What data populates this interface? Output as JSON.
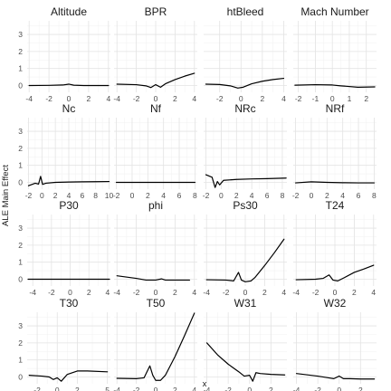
{
  "chart_data": {
    "type": "line",
    "ylabel": "ALE Main Effect",
    "xlabel": "x",
    "ylim": [
      -0.4,
      3.8
    ],
    "yticks": [
      0,
      1,
      2,
      3
    ],
    "grid": true,
    "facets": [
      {
        "name": "Altitude",
        "xlim": [
          -4.2,
          4.2
        ],
        "xticks": [
          -4,
          -2,
          0,
          2,
          4
        ],
        "points": [
          [
            -4,
            0
          ],
          [
            -2,
            0.01
          ],
          [
            -0.6,
            0.03
          ],
          [
            0,
            0.08
          ],
          [
            0.5,
            0.02
          ],
          [
            1.5,
            0
          ],
          [
            4,
            0
          ]
        ]
      },
      {
        "name": "BPR",
        "xlim": [
          -4.3,
          4.3
        ],
        "xticks": [
          -4,
          -2,
          0,
          2,
          4
        ],
        "points": [
          [
            -4,
            0.08
          ],
          [
            -2,
            0.05
          ],
          [
            -1,
            -0.02
          ],
          [
            -0.5,
            -0.12
          ],
          [
            0,
            0.05
          ],
          [
            0.5,
            -0.1
          ],
          [
            1,
            0.1
          ],
          [
            2,
            0.35
          ],
          [
            3,
            0.55
          ],
          [
            4,
            0.72
          ]
        ]
      },
      {
        "name": "htBleed",
        "xlim": [
          -3.5,
          4.3
        ],
        "xticks": [
          -2,
          0,
          2,
          4
        ],
        "points": [
          [
            -3.3,
            0.08
          ],
          [
            -2,
            0.06
          ],
          [
            -1,
            -0.02
          ],
          [
            -0.3,
            -0.15
          ],
          [
            0.2,
            -0.1
          ],
          [
            1,
            0.1
          ],
          [
            2,
            0.25
          ],
          [
            3,
            0.35
          ],
          [
            4,
            0.42
          ]
        ]
      },
      {
        "name": "Mach Number",
        "xlim": [
          -2.3,
          2.6
        ],
        "xticks": [
          -2,
          -1,
          0,
          1,
          2
        ],
        "points": [
          [
            -2.2,
            0.02
          ],
          [
            -1,
            0.05
          ],
          [
            0,
            0.03
          ],
          [
            0.5,
            -0.02
          ],
          [
            1.5,
            -0.1
          ],
          [
            2.5,
            -0.08
          ]
        ]
      },
      {
        "name": "Nc",
        "xlim": [
          -2.2,
          10.2
        ],
        "xticks": [
          -2,
          0,
          2,
          4,
          6,
          8,
          10
        ],
        "points": [
          [
            -2,
            -0.2
          ],
          [
            -1,
            -0.05
          ],
          [
            -0.5,
            -0.1
          ],
          [
            -0.2,
            0.35
          ],
          [
            0.1,
            -0.12
          ],
          [
            0.6,
            -0.05
          ],
          [
            2,
            0
          ],
          [
            4,
            0.02
          ],
          [
            6,
            0.03
          ],
          [
            8,
            0.04
          ],
          [
            10,
            0.05
          ]
        ]
      },
      {
        "name": "Nf",
        "xlim": [
          -2.3,
          8.3
        ],
        "xticks": [
          -2,
          0,
          2,
          4,
          6,
          8
        ],
        "points": [
          [
            -2,
            0
          ],
          [
            8,
            0
          ]
        ]
      },
      {
        "name": "NRc",
        "xlim": [
          -2.3,
          8.6
        ],
        "xticks": [
          -2,
          0,
          2,
          4,
          6,
          8
        ],
        "points": [
          [
            -2,
            0.45
          ],
          [
            -1.2,
            0.3
          ],
          [
            -0.8,
            -0.3
          ],
          [
            -0.5,
            0.05
          ],
          [
            -0.2,
            -0.15
          ],
          [
            0.3,
            0.12
          ],
          [
            2,
            0.17
          ],
          [
            4,
            0.2
          ],
          [
            6,
            0.22
          ],
          [
            8.5,
            0.25
          ]
        ]
      },
      {
        "name": "NRf",
        "xlim": [
          -2.3,
          8.3
        ],
        "xticks": [
          -2,
          0,
          2,
          4,
          6,
          8
        ],
        "points": [
          [
            -2,
            -0.03
          ],
          [
            0,
            0.03
          ],
          [
            2,
            0
          ],
          [
            4,
            -0.02
          ],
          [
            6,
            -0.03
          ],
          [
            8,
            -0.03
          ]
        ]
      },
      {
        "name": "P30",
        "xlim": [
          -4.6,
          4.3
        ],
        "xticks": [
          -4,
          -2,
          0,
          2,
          4
        ],
        "points": [
          [
            -4.5,
            0
          ],
          [
            4.2,
            0
          ]
        ]
      },
      {
        "name": "phi",
        "xlim": [
          -4.3,
          4.3
        ],
        "xticks": [
          -4,
          -2,
          0,
          2,
          4
        ],
        "points": [
          [
            -4,
            0.2
          ],
          [
            -2,
            0.05
          ],
          [
            -1,
            -0.05
          ],
          [
            0,
            -0.05
          ],
          [
            0.6,
            0.02
          ],
          [
            1,
            -0.05
          ],
          [
            2,
            -0.05
          ],
          [
            3.5,
            -0.05
          ]
        ]
      },
      {
        "name": "Ps30",
        "xlim": [
          -4.3,
          4.3
        ],
        "xticks": [
          -4,
          -2,
          0,
          2,
          4
        ],
        "points": [
          [
            -4,
            -0.03
          ],
          [
            -2,
            -0.05
          ],
          [
            -1.2,
            -0.1
          ],
          [
            -0.7,
            0.4
          ],
          [
            -0.4,
            -0.05
          ],
          [
            0,
            -0.15
          ],
          [
            0.6,
            -0.1
          ],
          [
            1,
            0.1
          ],
          [
            2,
            0.8
          ],
          [
            3,
            1.55
          ],
          [
            4,
            2.35
          ]
        ]
      },
      {
        "name": "T24",
        "xlim": [
          -4.3,
          4.3
        ],
        "xticks": [
          -4,
          -2,
          0,
          2,
          4
        ],
        "points": [
          [
            -4,
            -0.03
          ],
          [
            -2,
            0
          ],
          [
            -1.2,
            0.05
          ],
          [
            -0.6,
            0.25
          ],
          [
            -0.2,
            -0.05
          ],
          [
            0.3,
            -0.1
          ],
          [
            1,
            0.1
          ],
          [
            2,
            0.4
          ],
          [
            3,
            0.6
          ],
          [
            4,
            0.82
          ]
        ]
      },
      {
        "name": "T30",
        "xlim": [
          -3.0,
          5.3
        ],
        "xticks": [
          -2,
          0,
          2,
          5
        ],
        "points": [
          [
            -2.8,
            0.1
          ],
          [
            -1.5,
            0.05
          ],
          [
            -0.8,
            0
          ],
          [
            -0.4,
            -0.15
          ],
          [
            0,
            -0.05
          ],
          [
            0.4,
            -0.25
          ],
          [
            1,
            0.15
          ],
          [
            2,
            0.35
          ],
          [
            3,
            0.35
          ],
          [
            5,
            0.3
          ]
        ]
      },
      {
        "name": "T50",
        "xlim": [
          -4.3,
          4.3
        ],
        "xticks": [
          -4,
          -2,
          0,
          2,
          4
        ],
        "points": [
          [
            -4,
            -0.08
          ],
          [
            -2,
            -0.1
          ],
          [
            -1.2,
            -0.05
          ],
          [
            -0.6,
            0.65
          ],
          [
            -0.3,
            0.1
          ],
          [
            0,
            -0.2
          ],
          [
            0.5,
            -0.2
          ],
          [
            1,
            0.1
          ],
          [
            2,
            1.2
          ],
          [
            3,
            2.45
          ],
          [
            4,
            3.75
          ]
        ]
      },
      {
        "name": "W31",
        "xlim": [
          -4.3,
          3.5
        ],
        "xticks": [
          -4,
          -2,
          0,
          2
        ],
        "points": [
          [
            -4,
            2.0
          ],
          [
            -3,
            1.3
          ],
          [
            -2,
            0.75
          ],
          [
            -1,
            0.3
          ],
          [
            -0.5,
            0.05
          ],
          [
            0,
            0.1
          ],
          [
            0.3,
            -0.25
          ],
          [
            0.6,
            0.25
          ],
          [
            1,
            0.2
          ],
          [
            2,
            0.15
          ],
          [
            3.3,
            0.12
          ]
        ]
      },
      {
        "name": "W32",
        "xlim": [
          -4.3,
          3.5
        ],
        "xticks": [
          -4,
          -2,
          0,
          2
        ],
        "points": [
          [
            -4,
            0.2
          ],
          [
            -2,
            0.05
          ],
          [
            -1,
            -0.05
          ],
          [
            -0.5,
            -0.1
          ],
          [
            0,
            0.05
          ],
          [
            0.4,
            -0.1
          ],
          [
            1,
            -0.1
          ],
          [
            2,
            -0.12
          ],
          [
            3.3,
            -0.12
          ]
        ]
      }
    ]
  }
}
